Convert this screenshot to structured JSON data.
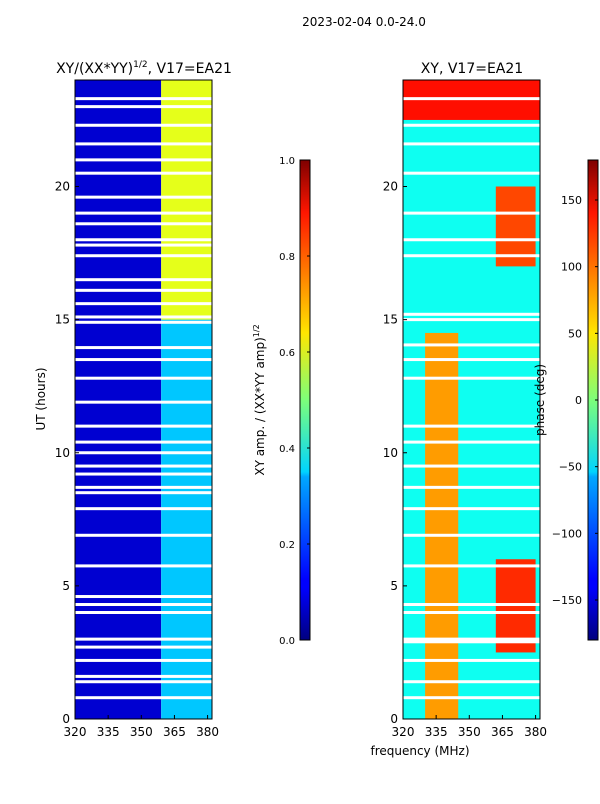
{
  "figure": {
    "suptitle": "2023-02-04 0.0-24.0",
    "shared_xlabel": "frequency (MHz)"
  },
  "chart_data": [
    {
      "type": "heatmap",
      "title_prefix": "XY/(XX*YY)",
      "title_sup": "1/2",
      "title_suffix": ", V17=EA21",
      "ylabel": "UT (hours)",
      "xlim": [
        320,
        382
      ],
      "ylim": [
        0,
        24
      ],
      "xticks": [
        320,
        335,
        350,
        365,
        380
      ],
      "yticks": [
        0,
        5,
        10,
        15,
        20
      ],
      "colorbar": {
        "label_main": "XY amp. / (XX*YY amp)",
        "label_sup": "1/2",
        "range": [
          0.0,
          1.0
        ],
        "ticks": [
          "0.0",
          "0.2",
          "0.4",
          "0.6",
          "0.8",
          "1.0"
        ],
        "tick_values": [
          0.0,
          0.2,
          0.4,
          0.6,
          0.8,
          1.0
        ],
        "colormap": "jet"
      },
      "blank_rows_hours": [
        0.8,
        1.4,
        1.6,
        2.2,
        2.7,
        3.0,
        4.0,
        4.3,
        4.6,
        5.75,
        6.9,
        7.9,
        8.5,
        8.7,
        9.2,
        9.5,
        10.0,
        10.4,
        11.0,
        11.9,
        12.8,
        13.5,
        13.95,
        14.9,
        15.1,
        15.6,
        16.1,
        16.5,
        17.4,
        17.8,
        18.0,
        18.6,
        19.0,
        19.6,
        20.5,
        21.0,
        21.6,
        22.3,
        23.0,
        23.3
      ],
      "regions": [
        {
          "f": [
            320,
            359
          ],
          "t": [
            0,
            24
          ],
          "value": 0.08
        },
        {
          "f": [
            359,
            382
          ],
          "t": [
            0,
            15
          ],
          "value": 0.32
        },
        {
          "f": [
            359,
            382
          ],
          "t": [
            15,
            24
          ],
          "value": 0.6
        }
      ]
    },
    {
      "type": "heatmap",
      "title_prefix": "XY, V17=EA21",
      "title_sup": "",
      "title_suffix": "",
      "ylabel": "",
      "xlim": [
        320,
        382
      ],
      "ylim": [
        0,
        24
      ],
      "xticks": [
        320,
        335,
        350,
        365,
        380
      ],
      "yticks": [
        0,
        5,
        10,
        15,
        20
      ],
      "colorbar": {
        "label_main": "phase (deg)",
        "label_sup": "",
        "range": [
          -180,
          180
        ],
        "ticks": [
          "−150",
          "−100",
          "−50",
          "0",
          "50",
          "100",
          "150"
        ],
        "tick_values": [
          -150,
          -100,
          -50,
          0,
          50,
          100,
          150
        ],
        "colormap": "jet"
      },
      "blank_rows_hours": [
        0.8,
        1.4,
        2.2,
        2.9,
        3.0,
        4.0,
        4.3,
        5.75,
        6.9,
        7.9,
        8.7,
        9.5,
        10.4,
        11.0,
        12.8,
        13.5,
        14.05,
        15.0,
        15.2,
        17.4,
        18.0,
        19.0,
        20.5,
        21.6,
        22.3,
        23.3
      ],
      "regions": [
        {
          "f": [
            320,
            382
          ],
          "t": [
            0,
            24
          ],
          "value": -40
        },
        {
          "f": [
            330,
            345
          ],
          "t": [
            0,
            14.5
          ],
          "value": 80
        },
        {
          "f": [
            362,
            380
          ],
          "t": [
            2.5,
            6
          ],
          "value": 120
        },
        {
          "f": [
            362,
            380
          ],
          "t": [
            17,
            20
          ],
          "value": 110
        },
        {
          "f": [
            320,
            382
          ],
          "t": [
            22.5,
            24
          ],
          "value": 130
        }
      ]
    }
  ]
}
